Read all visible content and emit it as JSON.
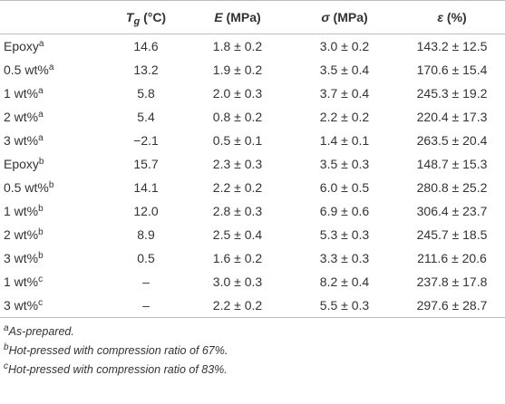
{
  "table": {
    "headers": [
      {
        "symbol": "T",
        "sub": "g",
        "unit": "(°C)"
      },
      {
        "symbol": "E",
        "unit": "(MPa)"
      },
      {
        "symbol": "σ",
        "unit": "(MPa)"
      },
      {
        "symbol": "ε",
        "unit": "(%)"
      }
    ],
    "rows": [
      {
        "label": "Epoxy",
        "note": "a",
        "cells": [
          "14.6",
          "1.8 ± 0.2",
          "3.0 ± 0.2",
          "143.2 ± 12.5"
        ]
      },
      {
        "label": "0.5 wt%",
        "note": "a",
        "cells": [
          "13.2",
          "1.9 ± 0.2",
          "3.5 ± 0.4",
          "170.6 ± 15.4"
        ]
      },
      {
        "label": "1 wt%",
        "note": "a",
        "cells": [
          "5.8",
          "2.0 ± 0.3",
          "3.7 ± 0.4",
          "245.3 ± 19.2"
        ]
      },
      {
        "label": "2 wt%",
        "note": "a",
        "cells": [
          "5.4",
          "0.8 ± 0.2",
          "2.2 ± 0.2",
          "220.4 ± 17.3"
        ]
      },
      {
        "label": "3 wt%",
        "note": "a",
        "cells": [
          "−2.1",
          "0.5 ± 0.1",
          "1.4 ± 0.1",
          "263.5 ± 20.4"
        ]
      },
      {
        "label": "Epoxy",
        "note": "b",
        "cells": [
          "15.7",
          "2.3 ± 0.3",
          "3.5 ± 0.3",
          "148.7 ± 15.3"
        ]
      },
      {
        "label": "0.5 wt%",
        "note": "b",
        "cells": [
          "14.1",
          "2.2 ± 0.2",
          "6.0 ± 0.5",
          "280.8 ± 25.2"
        ]
      },
      {
        "label": "1 wt%",
        "note": "b",
        "cells": [
          "12.0",
          "2.8 ± 0.3",
          "6.9 ± 0.6",
          "306.4 ± 23.7"
        ]
      },
      {
        "label": "2 wt%",
        "note": "b",
        "cells": [
          "8.9",
          "2.5 ± 0.4",
          "5.3 ± 0.3",
          "245.7 ± 18.5"
        ]
      },
      {
        "label": "3 wt%",
        "note": "b",
        "cells": [
          "0.5",
          "1.6 ± 0.2",
          "3.3 ± 0.3",
          "211.6 ± 20.6"
        ]
      },
      {
        "label": "1 wt%",
        "note": "c",
        "cells": [
          "–",
          "3.0 ± 0.3",
          "8.2 ± 0.4",
          "237.8 ± 17.8"
        ]
      },
      {
        "label": "3 wt%",
        "note": "c",
        "cells": [
          "–",
          "2.2 ± 0.2",
          "5.5 ± 0.3",
          "297.6 ± 28.7"
        ]
      }
    ]
  },
  "footnotes": [
    {
      "mark": "a",
      "text": "As-prepared."
    },
    {
      "mark": "b",
      "text": "Hot-pressed with compression ratio of 67%."
    },
    {
      "mark": "c",
      "text": "Hot-pressed with compression ratio of 83%."
    }
  ]
}
